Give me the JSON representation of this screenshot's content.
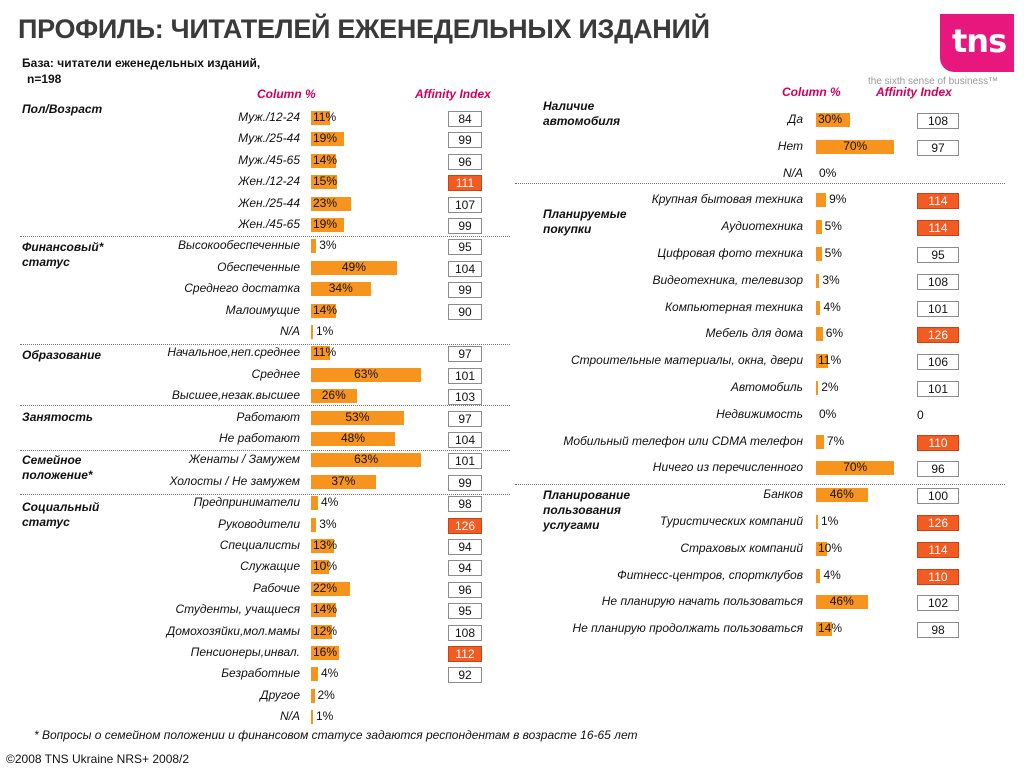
{
  "title": "ПРОФИЛЬ: ЧИТАТЕЛЕЙ ЕЖЕНЕДЕЛЬНЫХ ИЗДАНИЙ",
  "base_line1": "База: читатели еженедельных изданий,",
  "base_line2": "n=198",
  "logo_text": "tns",
  "tagline": "the sixth sense of business™",
  "column_header": "Column %",
  "affinity_header": "Affinity Index",
  "footnote": "* Вопросы о семейном положении и финансовом статусе задаются респондентам в возрасте 16-65 лет",
  "copyright": "©2008 TNS Ukraine  NRS+ 2008/2",
  "colors": {
    "bar": "#f7941d",
    "affinity_high": "#f25c23",
    "header": "#d0005c",
    "logo": "#e8177e"
  },
  "chart_data": [
    {
      "type": "bar",
      "panel": "left",
      "groups": [
        {
          "title": "Пол/Возраст",
          "rows": [
            {
              "label": "Муж./12-24",
              "value": 11,
              "text": "11%",
              "affinity": "84"
            },
            {
              "label": "Муж./25-44",
              "value": 19,
              "text": "19%",
              "affinity": "99"
            },
            {
              "label": "Муж./45-65",
              "value": 14,
              "text": "14%",
              "affinity": "96"
            },
            {
              "label": "Жен./12-24",
              "value": 15,
              "text": "15%",
              "affinity": "111",
              "highlight": true
            },
            {
              "label": "Жен./25-44",
              "value": 23,
              "text": "23%",
              "affinity": "107"
            },
            {
              "label": "Жен./45-65",
              "value": 19,
              "text": "19%",
              "affinity": "99"
            }
          ]
        },
        {
          "title": "Финансовый* статус",
          "rows": [
            {
              "label": "Высокообеспеченные",
              "value": 3,
              "text": "3%",
              "affinity": "95"
            },
            {
              "label": "Обеспеченные",
              "value": 49,
              "text": "49%",
              "affinity": "104"
            },
            {
              "label": "Среднего достатка",
              "value": 34,
              "text": "34%",
              "affinity": "99"
            },
            {
              "label": "Малоимущие",
              "value": 14,
              "text": "14%",
              "affinity": "90"
            },
            {
              "label": "N/A",
              "value": 1,
              "text": "1%",
              "affinity": ""
            }
          ]
        },
        {
          "title": "Образование",
          "rows": [
            {
              "label": "Начальное,неп.среднее",
              "value": 11,
              "text": "11%",
              "affinity": "97"
            },
            {
              "label": "Среднее",
              "value": 63,
              "text": "63%",
              "affinity": "101"
            },
            {
              "label": "Высшее,незак.высшее",
              "value": 26,
              "text": "26%",
              "affinity": "103"
            }
          ]
        },
        {
          "title": "Занятость",
          "rows": [
            {
              "label": "Работают",
              "value": 53,
              "text": "53%",
              "affinity": "97"
            },
            {
              "label": "Не работают",
              "value": 48,
              "text": "48%",
              "affinity": "104"
            }
          ]
        },
        {
          "title": "Семейное положение*",
          "rows": [
            {
              "label": "Женаты / Замужем",
              "value": 63,
              "text": "63%",
              "affinity": "101"
            },
            {
              "label": "Холосты / Не замужем",
              "value": 37,
              "text": "37%",
              "affinity": "99"
            }
          ]
        },
        {
          "title": "Социальный статус",
          "rows": [
            {
              "label": "Предприниматели",
              "value": 4,
              "text": "4%",
              "affinity": "98"
            },
            {
              "label": "Руководители",
              "value": 3,
              "text": "3%",
              "affinity": "126",
              "highlight": true
            },
            {
              "label": "Специалисты",
              "value": 13,
              "text": "13%",
              "affinity": "94"
            },
            {
              "label": "Служащие",
              "value": 10,
              "text": "10%",
              "affinity": "94"
            },
            {
              "label": "Рабочие",
              "value": 22,
              "text": "22%",
              "affinity": "96"
            },
            {
              "label": "Студенты, учащиеся",
              "value": 14,
              "text": "14%",
              "affinity": "95"
            },
            {
              "label": "Домохозяйки,мол.мамы",
              "value": 12,
              "text": "12%",
              "affinity": "108"
            },
            {
              "label": "Пенсионеры,инвал.",
              "value": 16,
              "text": "16%",
              "affinity": "112",
              "highlight": true
            },
            {
              "label": "Безработные",
              "value": 4,
              "text": "4%",
              "affinity": "92"
            },
            {
              "label": "Другое",
              "value": 2,
              "text": "2%",
              "affinity": ""
            },
            {
              "label": "N/A",
              "value": 1,
              "text": "1%",
              "affinity": ""
            }
          ]
        }
      ]
    },
    {
      "type": "bar",
      "panel": "right",
      "groups": [
        {
          "title": "Наличие автомобиля",
          "rows": [
            {
              "label": "Да",
              "value": 30,
              "text": "30%",
              "affinity": "108"
            },
            {
              "label": "Нет",
              "value": 70,
              "text": "70%",
              "affinity": "97"
            },
            {
              "label": "N/A",
              "value": 0,
              "text": "0%",
              "affinity": ""
            }
          ]
        },
        {
          "title": "Планируемые покупки",
          "rows": [
            {
              "label": "Крупная бытовая техника",
              "value": 9,
              "text": "9%",
              "affinity": "114",
              "highlight": true
            },
            {
              "label": "Аудиотехника",
              "value": 5,
              "text": "5%",
              "affinity": "114",
              "highlight": true
            },
            {
              "label": "Цифровая фото техника",
              "value": 5,
              "text": "5%",
              "affinity": "95"
            },
            {
              "label": "Видеотехника, телевизор",
              "value": 3,
              "text": "3%",
              "affinity": "108"
            },
            {
              "label": "Компьютерная техника",
              "value": 4,
              "text": "4%",
              "affinity": "101"
            },
            {
              "label": "Мебель для дома",
              "value": 6,
              "text": "6%",
              "affinity": "126",
              "highlight": true
            },
            {
              "label": "Строительные материалы, окна, двери",
              "value": 11,
              "text": "11%",
              "affinity": "106"
            },
            {
              "label": "Автомобиль",
              "value": 2,
              "text": "2%",
              "affinity": "101"
            },
            {
              "label": "Недвижимость",
              "value": 0,
              "text": "0%",
              "affinity": "0",
              "plain": true
            },
            {
              "label": "Мобильный телефон или CDMA телефон",
              "value": 7,
              "text": "7%",
              "affinity": "110",
              "highlight": true
            },
            {
              "label": "Ничего из перечисленного",
              "value": 70,
              "text": "70%",
              "affinity": "96"
            }
          ]
        },
        {
          "title": "Планирование пользования услугами",
          "rows": [
            {
              "label": "Банков",
              "value": 46,
              "text": "46%",
              "affinity": "100"
            },
            {
              "label": "Туристических компаний",
              "value": 1,
              "text": "1%",
              "affinity": "126",
              "highlight": true
            },
            {
              "label": "Страховых компаний",
              "value": 10,
              "text": "10%",
              "affinity": "114",
              "highlight": true
            },
            {
              "label": "Фитнесс-центров, спортклубов",
              "value": 4,
              "text": "4%",
              "affinity": "110",
              "highlight": true
            },
            {
              "label": "Не планирую начать пользоваться",
              "value": 46,
              "text": "46%",
              "affinity": "102"
            },
            {
              "label": "Не планирую продолжать пользоваться",
              "value": 14,
              "text": "14%",
              "affinity": "98"
            }
          ]
        }
      ]
    }
  ]
}
